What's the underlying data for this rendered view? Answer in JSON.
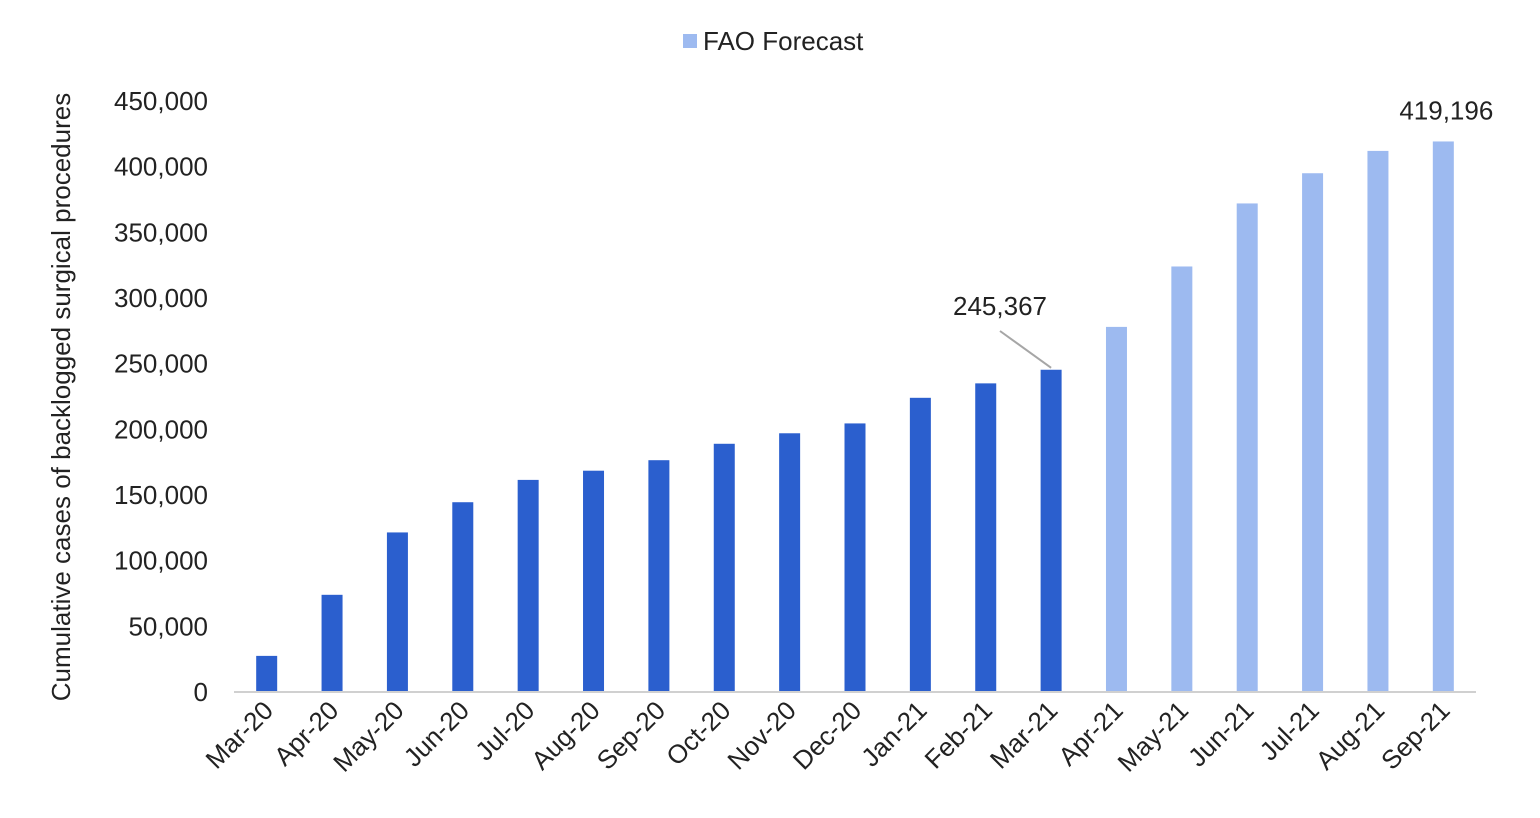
{
  "chart_data": {
    "type": "bar",
    "title": "",
    "xlabel": "",
    "ylabel": "Cumulative cases of backlogged surgical procedures",
    "ylim": [
      0,
      450000
    ],
    "yticks": [
      "0",
      "50,000",
      "100,000",
      "150,000",
      "200,000",
      "250,000",
      "300,000",
      "350,000",
      "400,000",
      "450,000"
    ],
    "grid": false,
    "legend_position": "top-center",
    "categories": [
      "Mar-20",
      "Apr-20",
      "May-20",
      "Jun-20",
      "Jul-20",
      "Aug-20",
      "Sep-20",
      "Oct-20",
      "Nov-20",
      "Dec-20",
      "Jan-21",
      "Feb-21",
      "Mar-21",
      "Apr-21",
      "May-21",
      "Jun-21",
      "Jul-21",
      "Aug-21",
      "Sep-21"
    ],
    "series": [
      {
        "name": "",
        "color": "#2b5fce",
        "values": [
          27500,
          74000,
          121500,
          144500,
          161500,
          168500,
          176500,
          189000,
          197000,
          204500,
          224000,
          235000,
          245367,
          null,
          null,
          null,
          null,
          null,
          null
        ]
      },
      {
        "name": "FAO Forecast",
        "color": "#9dbaf0",
        "values": [
          null,
          null,
          null,
          null,
          null,
          null,
          null,
          null,
          null,
          null,
          null,
          null,
          null,
          278000,
          324000,
          372000,
          395000,
          412000,
          419196
        ]
      }
    ],
    "annotations": [
      {
        "category": "Mar-21",
        "text": "245,367"
      },
      {
        "category": "Sep-21",
        "text": "419,196"
      }
    ]
  }
}
